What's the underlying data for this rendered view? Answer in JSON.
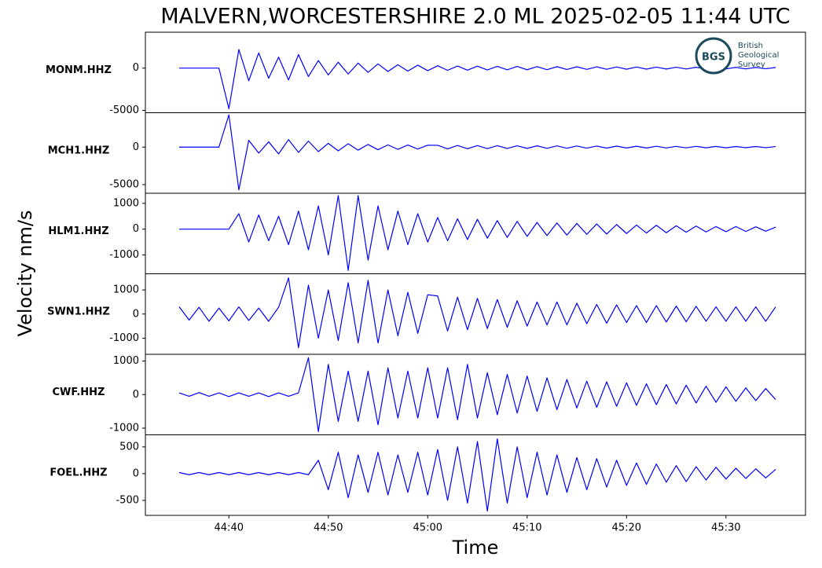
{
  "figure": {
    "title": "MALVERN,WORCESTERSHIRE 2.0 ML   2025-02-05 11:44 UTC",
    "xlabel": "Time",
    "ylabel": "Velocity nm/s"
  },
  "logo": {
    "abbr": "BGS",
    "lines": [
      "British",
      "Geological",
      "Survey"
    ]
  },
  "chart_data": [
    {
      "type": "line",
      "station": "MONM.HHZ",
      "color": "#0000ff",
      "xlim": [
        31.6,
        98
      ],
      "ylim": [
        -5280,
        4250
      ],
      "yticks": [
        0,
        -5000
      ],
      "x": [
        35,
        36,
        37,
        38,
        39,
        40,
        41,
        42,
        43,
        44,
        45,
        46,
        47,
        48,
        49,
        50,
        51,
        52,
        53,
        54,
        55,
        56,
        57,
        58,
        59,
        60,
        61,
        62,
        63,
        64,
        65,
        66,
        67,
        68,
        69,
        70,
        71,
        72,
        73,
        74,
        75,
        76,
        77,
        78,
        79,
        80,
        81,
        82,
        83,
        84,
        85,
        86,
        87,
        88,
        89,
        90,
        91,
        92,
        93,
        94,
        95
      ],
      "values": [
        0,
        0,
        0,
        0,
        0,
        -4800,
        2200,
        -1500,
        1800,
        -1200,
        1300,
        -1400,
        1600,
        -1000,
        900,
        -800,
        700,
        -700,
        600,
        -500,
        500,
        -400,
        400,
        -350,
        350,
        -300,
        280,
        -260,
        250,
        -240,
        230,
        -220,
        210,
        -200,
        200,
        -190,
        180,
        -180,
        170,
        -160,
        160,
        -150,
        150,
        -140,
        140,
        -130,
        130,
        -120,
        120,
        -110,
        110,
        -100,
        100,
        -100,
        100,
        -90,
        90,
        -90,
        90,
        -80,
        80
      ]
    },
    {
      "type": "line",
      "station": "MCH1.HHZ",
      "color": "#0000ff",
      "xlim": [
        31.6,
        98
      ],
      "ylim": [
        -6150,
        4580
      ],
      "yticks": [
        0,
        -5000
      ],
      "x": [
        35,
        36,
        37,
        38,
        39,
        40,
        41,
        42,
        43,
        44,
        45,
        46,
        47,
        48,
        49,
        50,
        51,
        52,
        53,
        54,
        55,
        56,
        57,
        58,
        59,
        60,
        61,
        62,
        63,
        64,
        65,
        66,
        67,
        68,
        69,
        70,
        71,
        72,
        73,
        74,
        75,
        76,
        77,
        78,
        79,
        80,
        81,
        82,
        83,
        84,
        85,
        86,
        87,
        88,
        89,
        90,
        91,
        92,
        93,
        94,
        95
      ],
      "values": [
        0,
        0,
        0,
        0,
        0,
        4300,
        -5700,
        900,
        -800,
        700,
        -900,
        1000,
        -700,
        800,
        -600,
        500,
        -500,
        450,
        -400,
        350,
        -350,
        300,
        -300,
        280,
        -260,
        250,
        240,
        -230,
        220,
        -210,
        200,
        -200,
        190,
        -180,
        180,
        -170,
        170,
        -160,
        160,
        -150,
        150,
        -140,
        140,
        -130,
        130,
        -120,
        120,
        -120,
        110,
        -110,
        100,
        -100,
        100,
        -90,
        90,
        -90,
        80,
        -80,
        80,
        -70,
        70
      ]
    },
    {
      "type": "line",
      "station": "HLM1.HHZ",
      "color": "#0000ff",
      "xlim": [
        31.6,
        98
      ],
      "ylim": [
        -1730,
        1390
      ],
      "yticks": [
        1000,
        0,
        -1000
      ],
      "x": [
        35,
        36,
        37,
        38,
        39,
        40,
        41,
        42,
        43,
        44,
        45,
        46,
        47,
        48,
        49,
        50,
        51,
        52,
        53,
        54,
        55,
        56,
        57,
        58,
        59,
        60,
        61,
        62,
        63,
        64,
        65,
        66,
        67,
        68,
        69,
        70,
        71,
        72,
        73,
        74,
        75,
        76,
        77,
        78,
        79,
        80,
        81,
        82,
        83,
        84,
        85,
        86,
        87,
        88,
        89,
        90,
        91,
        92,
        93,
        94,
        95
      ],
      "values": [
        0,
        0,
        0,
        0,
        0,
        0,
        600,
        -500,
        550,
        -450,
        500,
        -600,
        700,
        -800,
        900,
        -1000,
        1300,
        -1600,
        1300,
        -1200,
        900,
        -800,
        700,
        -600,
        600,
        -500,
        450,
        -450,
        400,
        -400,
        380,
        -350,
        330,
        -320,
        300,
        -280,
        260,
        -250,
        240,
        -230,
        220,
        -200,
        200,
        -190,
        180,
        -170,
        160,
        -150,
        150,
        -140,
        130,
        -120,
        120,
        -110,
        100,
        -100,
        100,
        -90,
        90,
        -80,
        80
      ]
    },
    {
      "type": "line",
      "station": "SWN1.HHZ",
      "color": "#0000ff",
      "xlim": [
        31.6,
        98
      ],
      "ylim": [
        -1670,
        1670
      ],
      "yticks": [
        1000,
        0,
        -1000
      ],
      "x": [
        35,
        36,
        37,
        38,
        39,
        40,
        41,
        42,
        43,
        44,
        45,
        46,
        47,
        48,
        49,
        50,
        51,
        52,
        53,
        54,
        55,
        56,
        57,
        58,
        59,
        60,
        61,
        62,
        63,
        64,
        65,
        66,
        67,
        68,
        69,
        70,
        71,
        72,
        73,
        74,
        75,
        76,
        77,
        78,
        79,
        80,
        81,
        82,
        83,
        84,
        85,
        86,
        87,
        88,
        89,
        90,
        91,
        92,
        93,
        94,
        95
      ],
      "values": [
        300,
        -250,
        280,
        -300,
        250,
        -280,
        300,
        -270,
        250,
        -300,
        280,
        1500,
        -1400,
        1200,
        -1000,
        1000,
        -1100,
        1300,
        -1200,
        1400,
        -1200,
        1000,
        -900,
        900,
        -800,
        800,
        750,
        -700,
        700,
        -650,
        650,
        -600,
        600,
        -550,
        550,
        -500,
        500,
        -450,
        500,
        -450,
        450,
        -400,
        400,
        -380,
        380,
        -350,
        350,
        -350,
        350,
        -330,
        330,
        -320,
        320,
        -300,
        300,
        -300,
        300,
        -300,
        300,
        -300,
        300
      ]
    },
    {
      "type": "line",
      "station": "CWF.HHZ",
      "color": "#0000ff",
      "xlim": [
        31.6,
        98
      ],
      "ylim": [
        -1200,
        1200
      ],
      "yticks": [
        1000,
        0,
        -1000
      ],
      "x": [
        35,
        36,
        37,
        38,
        39,
        40,
        41,
        42,
        43,
        44,
        45,
        46,
        47,
        48,
        49,
        50,
        51,
        52,
        53,
        54,
        55,
        56,
        57,
        58,
        59,
        60,
        61,
        62,
        63,
        64,
        65,
        66,
        67,
        68,
        69,
        70,
        71,
        72,
        73,
        74,
        75,
        76,
        77,
        78,
        79,
        80,
        81,
        82,
        83,
        84,
        85,
        86,
        87,
        88,
        89,
        90,
        91,
        92,
        93,
        94,
        95
      ],
      "values": [
        50,
        -50,
        60,
        -50,
        50,
        -60,
        50,
        -50,
        50,
        -60,
        50,
        -50,
        50,
        1100,
        -1100,
        900,
        -800,
        700,
        -800,
        700,
        -900,
        800,
        -700,
        700,
        -700,
        800,
        -700,
        800,
        -750,
        900,
        -700,
        650,
        -600,
        600,
        -550,
        550,
        -500,
        500,
        -450,
        450,
        -400,
        400,
        -380,
        380,
        -350,
        350,
        -320,
        320,
        -300,
        300,
        -280,
        280,
        -250,
        250,
        -230,
        230,
        -200,
        200,
        -180,
        180,
        -150
      ]
    },
    {
      "type": "line",
      "station": "FOEL.HHZ",
      "color": "#0000ff",
      "xlim": [
        31.6,
        98
      ],
      "ylim": [
        -780,
        725
      ],
      "yticks": [
        500,
        0,
        -500
      ],
      "xticks": [
        {
          "value": 40,
          "label": "44:40"
        },
        {
          "value": 50,
          "label": "44:50"
        },
        {
          "value": 60,
          "label": "45:00"
        },
        {
          "value": 70,
          "label": "45:10"
        },
        {
          "value": 80,
          "label": "45:20"
        },
        {
          "value": 90,
          "label": "45:30"
        }
      ],
      "x": [
        35,
        36,
        37,
        38,
        39,
        40,
        41,
        42,
        43,
        44,
        45,
        46,
        47,
        48,
        49,
        50,
        51,
        52,
        53,
        54,
        55,
        56,
        57,
        58,
        59,
        60,
        61,
        62,
        63,
        64,
        65,
        66,
        67,
        68,
        69,
        70,
        71,
        72,
        73,
        74,
        75,
        76,
        77,
        78,
        79,
        80,
        81,
        82,
        83,
        84,
        85,
        86,
        87,
        88,
        89,
        90,
        91,
        92,
        93,
        94,
        95
      ],
      "values": [
        20,
        -20,
        20,
        -20,
        20,
        -20,
        20,
        -20,
        20,
        -20,
        20,
        -20,
        20,
        -20,
        250,
        -300,
        400,
        -450,
        350,
        -350,
        400,
        -400,
        350,
        -350,
        400,
        -400,
        450,
        -500,
        500,
        -550,
        600,
        -700,
        650,
        -550,
        500,
        -450,
        400,
        -400,
        350,
        -350,
        300,
        -300,
        280,
        -250,
        250,
        -220,
        200,
        -200,
        180,
        -160,
        150,
        -150,
        130,
        -120,
        120,
        -100,
        100,
        -90,
        90,
        -80,
        80
      ]
    }
  ]
}
